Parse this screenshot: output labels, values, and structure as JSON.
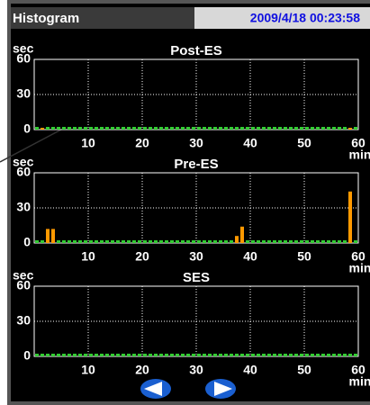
{
  "header": {
    "title": "Histogram",
    "datetime": "2009/4/18 00:23:58"
  },
  "chart_data": [
    {
      "type": "histogram",
      "title": "Post-ES",
      "xlabel": "min",
      "ylabel": "sec",
      "color": "#ff9900",
      "zero_color": "#33cc33",
      "bins": [
        0,
        1,
        2,
        3,
        4,
        5,
        6,
        7,
        8,
        9,
        10,
        11,
        12,
        13,
        14,
        15,
        16,
        17,
        18,
        19,
        20,
        21,
        22,
        23,
        24,
        25,
        26,
        27,
        28,
        29,
        30,
        31,
        32,
        33,
        34,
        35,
        36,
        37,
        38,
        39,
        40,
        41,
        42,
        43,
        44,
        45,
        46,
        47,
        48,
        49,
        50,
        51,
        52,
        53,
        54,
        55,
        56,
        57,
        58,
        59,
        60
      ],
      "values": [
        0,
        1,
        0,
        0,
        0,
        0,
        0,
        0,
        0,
        0,
        0,
        0,
        0,
        0,
        0,
        0,
        0,
        0,
        0,
        0,
        0,
        0,
        0,
        0,
        0,
        0,
        0,
        0,
        0,
        0,
        0,
        0,
        0,
        0,
        0,
        0,
        0,
        0,
        0,
        0,
        0,
        0,
        0,
        0,
        0,
        0,
        0,
        0,
        0,
        0,
        0,
        0,
        0,
        0,
        0,
        0,
        0,
        0,
        1,
        0
      ],
      "xlim": [
        0,
        60
      ],
      "xticks": [
        10,
        20,
        30,
        40,
        50,
        60
      ],
      "ylim": [
        0,
        60
      ],
      "yticks": [
        0,
        30,
        60
      ],
      "grid": true
    },
    {
      "type": "histogram",
      "title": "Pre-ES",
      "xlabel": "min",
      "ylabel": "sec",
      "color": "#ff9900",
      "zero_color": "#33cc33",
      "bins": [
        0,
        1,
        2,
        3,
        4,
        5,
        6,
        7,
        8,
        9,
        10,
        11,
        12,
        13,
        14,
        15,
        16,
        17,
        18,
        19,
        20,
        21,
        22,
        23,
        24,
        25,
        26,
        27,
        28,
        29,
        30,
        31,
        32,
        33,
        34,
        35,
        36,
        37,
        38,
        39,
        40,
        41,
        42,
        43,
        44,
        45,
        46,
        47,
        48,
        49,
        50,
        51,
        52,
        53,
        54,
        55,
        56,
        57,
        58,
        59,
        60
      ],
      "values": [
        0,
        0,
        12,
        12,
        0,
        0,
        0,
        0,
        0,
        0,
        0,
        0,
        0,
        0,
        0,
        0,
        0,
        0,
        0,
        0,
        0,
        0,
        0,
        0,
        0,
        0,
        0,
        0,
        0,
        0,
        0,
        0,
        0,
        0,
        0,
        0,
        0,
        6,
        14,
        0,
        0,
        0,
        0,
        0,
        0,
        0,
        0,
        0,
        0,
        0,
        0,
        0,
        0,
        0,
        0,
        0,
        0,
        0,
        44,
        0
      ],
      "xlim": [
        0,
        60
      ],
      "xticks": [
        10,
        20,
        30,
        40,
        50,
        60
      ],
      "ylim": [
        0,
        60
      ],
      "yticks": [
        0,
        30,
        60
      ],
      "grid": true
    },
    {
      "type": "histogram",
      "title": "SES",
      "xlabel": "min",
      "ylabel": "sec",
      "color": "#ff9900",
      "zero_color": "#33cc33",
      "bins": [
        0,
        1,
        2,
        3,
        4,
        5,
        6,
        7,
        8,
        9,
        10,
        11,
        12,
        13,
        14,
        15,
        16,
        17,
        18,
        19,
        20,
        21,
        22,
        23,
        24,
        25,
        26,
        27,
        28,
        29,
        30,
        31,
        32,
        33,
        34,
        35,
        36,
        37,
        38,
        39,
        40,
        41,
        42,
        43,
        44,
        45,
        46,
        47,
        48,
        49,
        50,
        51,
        52,
        53,
        54,
        55,
        56,
        57,
        58,
        59,
        60
      ],
      "values": [
        0,
        0,
        0,
        0,
        0,
        0,
        0,
        0,
        0,
        0,
        0,
        0,
        0,
        0,
        0,
        0,
        0,
        0,
        0,
        0,
        0,
        0,
        0,
        0,
        0,
        0,
        0,
        0,
        0,
        0,
        0,
        0,
        0,
        0,
        0,
        0,
        0,
        0,
        0,
        0,
        0,
        0,
        0,
        0,
        0,
        0,
        0,
        0,
        0,
        0,
        0,
        0,
        0,
        0,
        0,
        0,
        0,
        0,
        0,
        0
      ],
      "xlim": [
        0,
        60
      ],
      "xticks": [
        10,
        20,
        30,
        40,
        50,
        60
      ],
      "ylim": [
        0,
        60
      ],
      "yticks": [
        0,
        30,
        60
      ],
      "grid": true
    }
  ]
}
